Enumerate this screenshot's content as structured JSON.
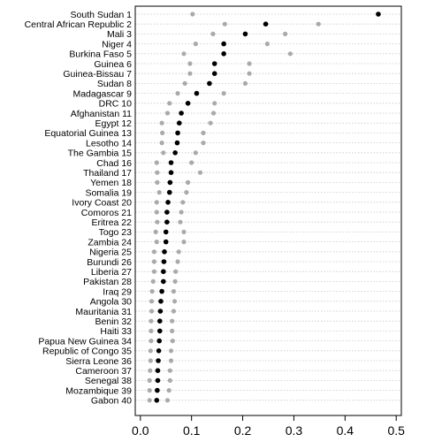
{
  "chart_data": {
    "type": "scatter",
    "xlim": [
      -0.01,
      0.51
    ],
    "x_ticks": [
      0.0,
      0.1,
      0.2,
      0.3,
      0.4,
      0.5
    ],
    "x_tick_labels": [
      "0.0",
      "0.1",
      "0.2",
      "0.3",
      "0.4",
      "0.5"
    ],
    "grid": true,
    "colors": {
      "estimate": "#000000",
      "interval": "#aaaaaa"
    },
    "categories": [
      "South Sudan 1",
      "Central African Republic 2",
      "Mali 3",
      "Niger 4",
      "Burkina Faso 5",
      "Guinea 6",
      "Guinea-Bissau 7",
      "Sudan 8",
      "Madagascar 9",
      "DRC 10",
      "Afghanistan 11",
      "Egypt 12",
      "Equatorial Guinea 13",
      "Lesotho 14",
      "The Gambia 15",
      "Chad 16",
      "Thailand 17",
      "Yemen 18",
      "Somalia 19",
      "Ivory Coast 20",
      "Comoros 21",
      "Eritrea 22",
      "Togo 23",
      "Zambia 24",
      "Nigeria 25",
      "Burundi 26",
      "Liberia 27",
      "Pakistan 28",
      "Iraq 29",
      "Angola 30",
      "Mauritania 31",
      "Benin 32",
      "Haiti 33",
      "Papua New Guinea 34",
      "Republic of Congo 35",
      "Sierra Leone 36",
      "Cameroon 37",
      "Senegal 38",
      "Mozambique 39",
      "Gabon 40"
    ],
    "estimate": [
      0.465,
      0.245,
      0.205,
      0.163,
      0.163,
      0.145,
      0.145,
      0.135,
      0.11,
      0.093,
      0.08,
      0.076,
      0.073,
      0.072,
      0.068,
      0.06,
      0.06,
      0.058,
      0.057,
      0.054,
      0.052,
      0.052,
      0.05,
      0.05,
      0.047,
      0.046,
      0.045,
      0.045,
      0.042,
      0.04,
      0.039,
      0.038,
      0.038,
      0.037,
      0.036,
      0.035,
      0.034,
      0.034,
      0.033,
      0.032
    ],
    "lower": [
      0.102,
      0.165,
      0.142,
      0.108,
      0.085,
      0.097,
      0.097,
      0.087,
      0.073,
      0.057,
      0.053,
      0.042,
      0.043,
      0.042,
      0.045,
      0.032,
      0.033,
      0.033,
      0.037,
      0.032,
      0.032,
      0.033,
      0.03,
      0.032,
      0.027,
      0.027,
      0.027,
      0.025,
      0.023,
      0.022,
      0.022,
      0.021,
      0.021,
      0.021,
      0.02,
      0.02,
      0.019,
      0.018,
      0.018,
      0.018
    ],
    "upper": [
      0.465,
      0.348,
      0.283,
      0.248,
      0.293,
      0.213,
      0.213,
      0.205,
      0.163,
      0.145,
      0.143,
      0.137,
      0.123,
      0.123,
      0.108,
      0.1,
      0.117,
      0.093,
      0.09,
      0.083,
      0.08,
      0.078,
      0.085,
      0.085,
      0.075,
      0.073,
      0.069,
      0.068,
      0.065,
      0.067,
      0.065,
      0.062,
      0.062,
      0.063,
      0.06,
      0.06,
      0.058,
      0.058,
      0.056,
      0.053
    ]
  }
}
